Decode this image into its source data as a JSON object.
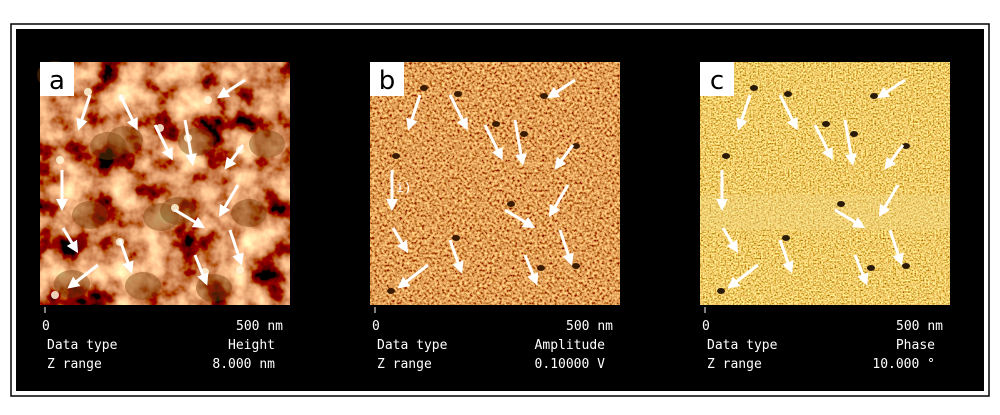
{
  "panels": [
    {
      "label": "a",
      "scale_start": "0",
      "scale_end": "500 nm",
      "data_type_label": "Data type",
      "data_type": "Height",
      "z_range_label": "Z range",
      "z_range": "8.000 nm"
    },
    {
      "label": "b",
      "scale_start": "0",
      "scale_end": "500 nm",
      "data_type_label": "Data type",
      "data_type": "Amplitude",
      "z_range_label": "Z range",
      "z_range": "0.10000  V",
      "annotation": "i)"
    },
    {
      "label": "c",
      "scale_start": "0",
      "scale_end": "500 nm",
      "data_type_label": "Data type",
      "data_type": "Phase",
      "z_range_label": "Z range",
      "z_range": "10.000  °"
    }
  ]
}
